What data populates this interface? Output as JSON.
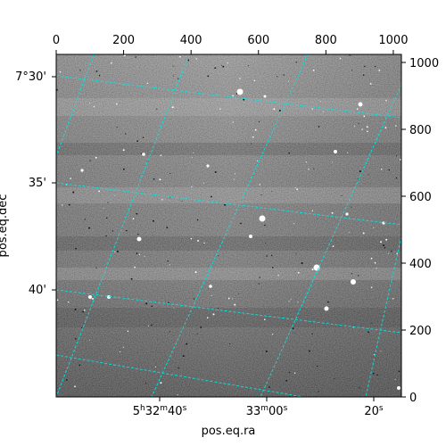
{
  "chart_data": {
    "type": "image",
    "image_style": "grayscale astronomical image with star field",
    "grid_color": "#00e5e5",
    "frame_color": "#000000",
    "pixel_axes": {
      "x_top": {
        "ticks": [
          0,
          200,
          400,
          600,
          800,
          1000
        ],
        "labels": [
          "0",
          "200",
          "400",
          "600",
          "800",
          "1000"
        ],
        "range": [
          0,
          1024
        ]
      },
      "y_right": {
        "ticks": [
          0,
          200,
          400,
          600,
          800,
          1000
        ],
        "labels": [
          "0",
          "200",
          "400",
          "600",
          "800",
          "1000"
        ],
        "range": [
          0,
          1024
        ]
      }
    },
    "world_axes": {
      "xlabel": "pos.eq.ra",
      "ylabel": "pos.eq.dec",
      "ra_ticks": [
        {
          "label_main": "5",
          "sup1": "h",
          "label_mid": "32",
          "sup2": "m",
          "label_end": "40",
          "sup3": "s"
        },
        {
          "label_main": "33",
          "sup1": "m",
          "label_mid": "00",
          "sup2": "s",
          "label_end": "",
          "sup3": ""
        },
        {
          "label_main": "20",
          "sup1": "s",
          "label_mid": "",
          "sup2": "",
          "label_end": "",
          "sup3": ""
        }
      ],
      "dec_ticks": [
        {
          "label": "7°30'"
        },
        {
          "label": "35'"
        },
        {
          "label": "40'"
        }
      ]
    }
  }
}
